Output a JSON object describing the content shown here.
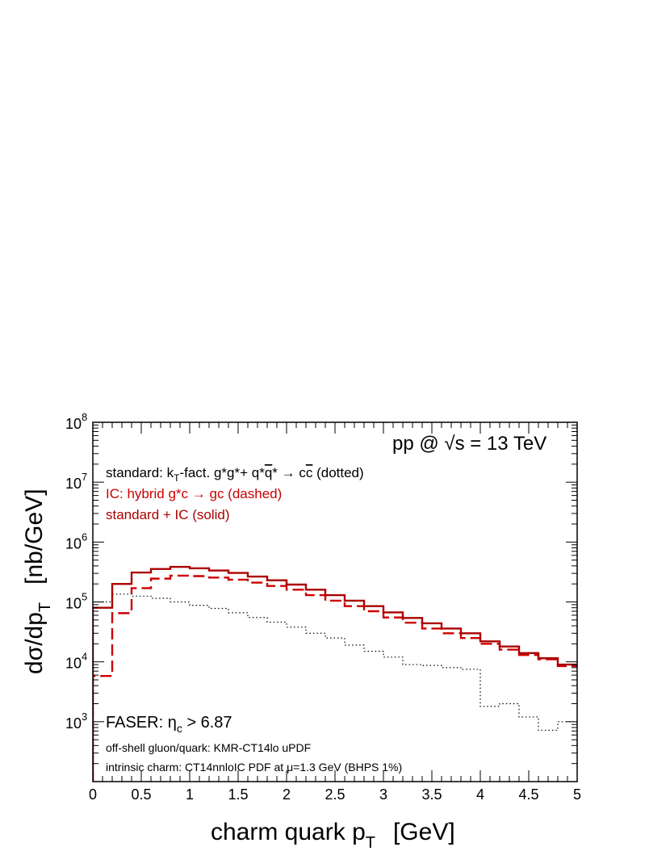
{
  "chart_data": {
    "type": "step-line",
    "xlabel": "charm quark p",
    "xlabel_sub": "T",
    "xlabel_unit": "[GeV]",
    "ylabel": "dσ/dp",
    "ylabel_sub": "T",
    "ylabel_unit": "[nb/GeV]",
    "xlim": [
      0,
      5
    ],
    "ylim": [
      100,
      100000000
    ],
    "yscale": "log",
    "x_ticks": [
      0,
      0.5,
      1,
      1.5,
      2,
      2.5,
      3,
      3.5,
      4,
      4.5,
      5
    ],
    "x_tick_labels": [
      "0",
      "0.5",
      "1",
      "1.5",
      "2",
      "2.5",
      "3",
      "3.5",
      "4",
      "4.5",
      "5"
    ],
    "y_ticks": [
      1000,
      10000,
      100000,
      1000000,
      10000000,
      100000000
    ],
    "y_tick_labels": [
      {
        "base": "10",
        "exp": "3"
      },
      {
        "base": "10",
        "exp": "4"
      },
      {
        "base": "10",
        "exp": "5"
      },
      {
        "base": "10",
        "exp": "6"
      },
      {
        "base": "10",
        "exp": "7"
      },
      {
        "base": "10",
        "exp": "8"
      }
    ],
    "bin_edges": [
      0,
      0.2,
      0.4,
      0.6,
      0.8,
      1.0,
      1.2,
      1.4,
      1.6,
      1.8,
      2.0,
      2.2,
      2.4,
      2.6,
      2.8,
      3.0,
      3.2,
      3.4,
      3.6,
      3.8,
      4.0,
      4.2,
      4.4,
      4.6,
      4.8,
      5.0
    ],
    "series": [
      {
        "name": "standard",
        "style": "dotted",
        "color": "#000000",
        "values": [
          100000,
          135000,
          125000,
          115000,
          100000,
          88000,
          78000,
          66000,
          55000,
          46000,
          38000,
          30000,
          25000,
          19000,
          15000,
          12000,
          9000,
          8700,
          8000,
          7500,
          1800,
          2000,
          1200,
          720,
          1000
        ]
      },
      {
        "name": "IC",
        "style": "dashed",
        "color": "#cc0000",
        "values": [
          5800,
          65000,
          170000,
          245000,
          275000,
          270000,
          255000,
          235000,
          210000,
          185000,
          160000,
          130000,
          105000,
          85000,
          70000,
          55000,
          45000,
          36000,
          30000,
          25000,
          20000,
          16000,
          13000,
          11000,
          8500
        ]
      },
      {
        "name": "standard + IC",
        "style": "solid",
        "color": "#aa0000",
        "values": [
          80000,
          200000,
          310000,
          355000,
          385000,
          365000,
          335000,
          305000,
          265000,
          230000,
          195000,
          160000,
          130000,
          105000,
          85000,
          67000,
          54000,
          44000,
          36000,
          30000,
          22000,
          18000,
          14000,
          11500,
          9000
        ]
      }
    ],
    "annotations": {
      "energy_pre": "pp @ ",
      "energy_sqrt": "√",
      "energy_post": "s = 13 TeV",
      "std_a": "standard: k",
      "std_b": "T",
      "std_c": "-fact. g*g*+ q*",
      "std_d": "q",
      "std_e": "* → c",
      "std_f": "c",
      "std_g": " (dotted)",
      "ic_line": "IC: hybrid g*c → gc (dashed)",
      "sum_line": "standard + IC (solid)",
      "faser_a": "FASER: η",
      "faser_b": "c",
      "faser_c": " > 6.87",
      "pdf_line": "off-shell gluon/quark: KMR-CT14lo uPDF",
      "intr_a": "intrinsic charm: CT14nnloIC PDF at ",
      "intr_b": "μ",
      "intr_c": "=1.3 GeV (BHPS 1%)"
    }
  }
}
